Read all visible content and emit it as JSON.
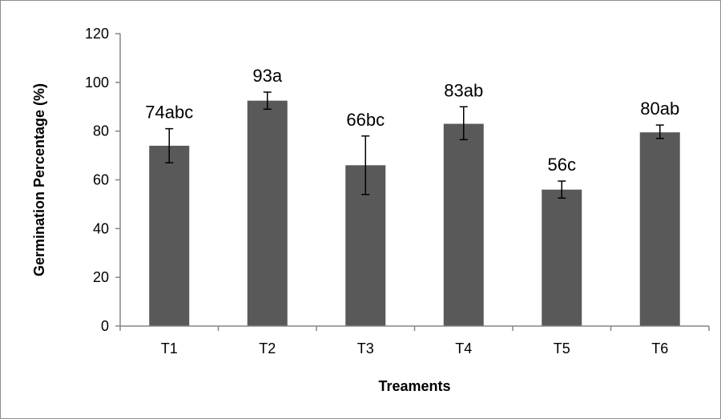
{
  "chart_data": {
    "type": "bar",
    "title": "",
    "xlabel": "Treaments",
    "ylabel": "Germination Percentage (%)",
    "ylim": [
      0,
      120
    ],
    "yticks": [
      0,
      20,
      40,
      60,
      80,
      100,
      120
    ],
    "grid": false,
    "legend": "none",
    "categories": [
      "T1",
      "T2",
      "T3",
      "T4",
      "T5",
      "T6"
    ],
    "values": [
      74,
      92.5,
      66,
      83,
      56,
      79.5
    ],
    "error_low": [
      67,
      89,
      54,
      76.5,
      52.5,
      77
    ],
    "error_high": [
      81,
      96,
      78,
      90,
      59.5,
      82.5
    ],
    "data_labels": [
      "74abc",
      "93a",
      "66bc",
      "83ab",
      "56c",
      "80ab"
    ],
    "bar_color": "#595959",
    "error_bar_color": "#000000"
  }
}
